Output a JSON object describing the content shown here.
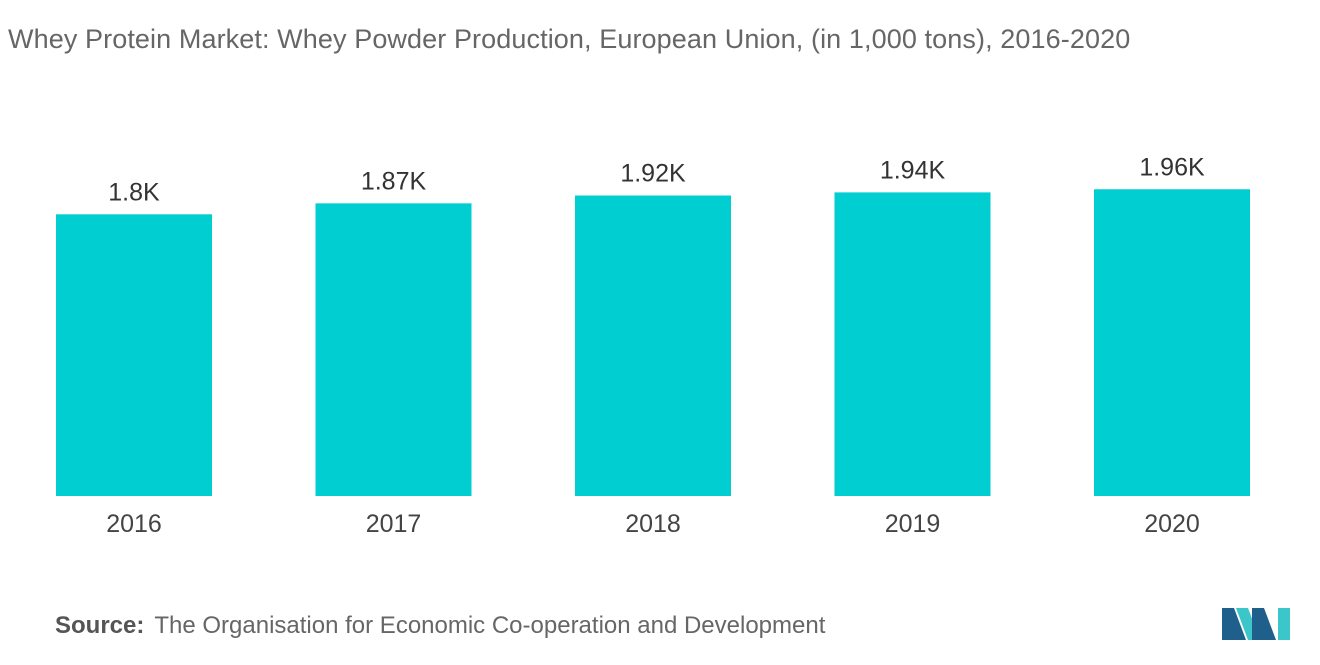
{
  "title": "Whey Protein Market: Whey Powder Production, European Union,  (in 1,000 tons), 2016-2020",
  "source": {
    "label": "Source:",
    "text": "The Organisation for Economic Co-operation and Development"
  },
  "logo_icon": "mordor-intelligence-logo-icon",
  "colors": {
    "bar": "#00CED1",
    "logo_dark": "#1f5f8b",
    "logo_light": "#3cc6c9"
  },
  "chart_data": {
    "type": "bar",
    "categories": [
      "2016",
      "2017",
      "2018",
      "2019",
      "2020"
    ],
    "values": [
      1800,
      1870,
      1920,
      1940,
      1960
    ],
    "value_labels": [
      "1.8K",
      "1.87K",
      "1.92K",
      "1.94K",
      "1.96K"
    ],
    "title": "Whey Protein Market: Whey Powder Production, European Union,  (in 1,000 tons), 2016-2020",
    "xlabel": "",
    "ylabel": "",
    "ylim": [
      0,
      2000
    ],
    "grid": false,
    "legend": "none"
  }
}
